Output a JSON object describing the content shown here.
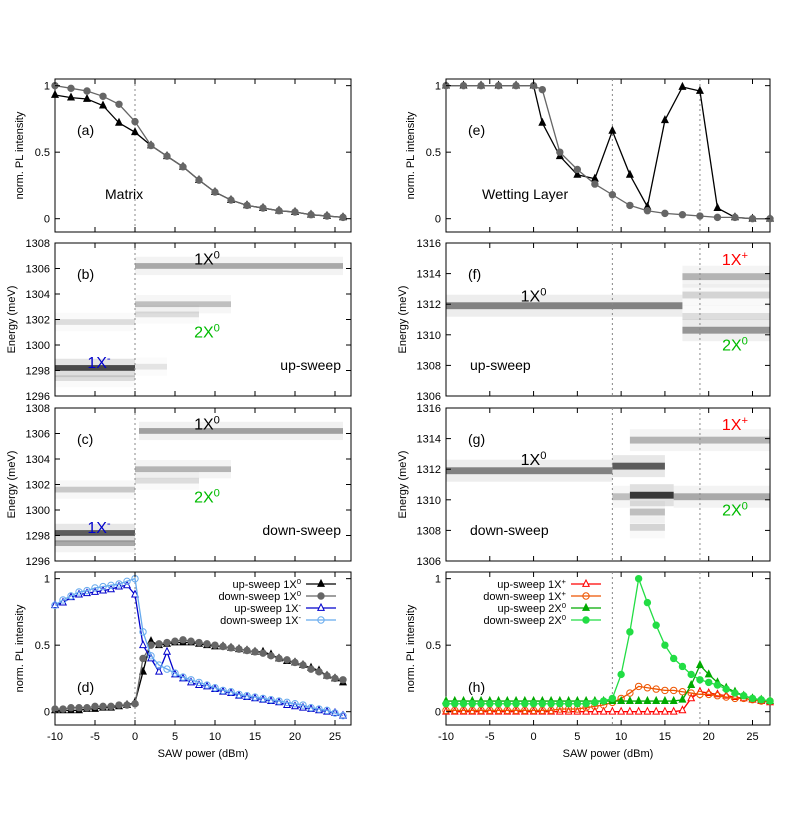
{
  "colors": {
    "black": "#000000",
    "gray": "#666666",
    "blue": "#0000cc",
    "lightblue": "#66aaee",
    "red": "#ff0000",
    "orange": "#ee5500",
    "green": "#00aa00",
    "lightgreen": "#22dd44",
    "labelgreen": "#00bb00"
  },
  "chart_data": [
    {
      "id": "a",
      "type": "line",
      "panel_label": "(a)",
      "annotation": "Matrix",
      "ylabel": "norm. PL intensity",
      "xlim": [
        -10,
        27
      ],
      "ylim": [
        -0.1,
        1.05
      ],
      "yticks": [
        "0",
        "0.5",
        "1"
      ],
      "vline_x": 0,
      "x": [
        -10,
        -8,
        -6,
        -4,
        -2,
        0,
        2,
        4,
        6,
        8,
        10,
        12,
        14,
        16,
        18,
        20,
        22,
        24,
        26
      ],
      "series": [
        {
          "color": "black",
          "marker": "triangle",
          "values": [
            0.93,
            0.91,
            0.9,
            0.85,
            0.72,
            0.65,
            0.55,
            0.47,
            0.39,
            0.29,
            0.2,
            0.14,
            0.1,
            0.08,
            0.06,
            0.05,
            0.03,
            0.02,
            0.01
          ]
        },
        {
          "color": "gray",
          "marker": "circle",
          "values": [
            1.0,
            0.98,
            0.96,
            0.92,
            0.86,
            0.73,
            0.55,
            0.47,
            0.39,
            0.29,
            0.2,
            0.14,
            0.1,
            0.08,
            0.06,
            0.05,
            0.03,
            0.02,
            0.01
          ]
        }
      ]
    },
    {
      "id": "e",
      "type": "line",
      "panel_label": "(e)",
      "annotation": "Wetting Layer",
      "ylabel": "norm. PL intensity",
      "xlim": [
        -10,
        27
      ],
      "ylim": [
        -0.1,
        1.05
      ],
      "yticks": [
        "0",
        "0.5",
        "1"
      ],
      "vlines_x": [
        9,
        19
      ],
      "series": [
        {
          "color": "black",
          "marker": "triangle",
          "x": [
            -10,
            -8,
            -6,
            -4,
            -2,
            0,
            1,
            3,
            5,
            7,
            9,
            11,
            13,
            15,
            17,
            19,
            21,
            23,
            25,
            27
          ],
          "values": [
            1.0,
            1.0,
            1.0,
            1.0,
            1.0,
            1.0,
            0.72,
            0.47,
            0.33,
            0.3,
            0.66,
            0.33,
            0.09,
            0.74,
            0.99,
            0.96,
            0.08,
            0.01,
            0.0,
            0.0
          ]
        },
        {
          "color": "gray",
          "marker": "circle",
          "x": [
            -10,
            -8,
            -6,
            -4,
            -2,
            0,
            1,
            3,
            5,
            7,
            9,
            11,
            13,
            15,
            17,
            19,
            21,
            23,
            25,
            27
          ],
          "values": [
            1.0,
            1.0,
            1.0,
            1.0,
            1.0,
            1.0,
            0.97,
            0.5,
            0.37,
            0.26,
            0.18,
            0.1,
            0.06,
            0.04,
            0.03,
            0.02,
            0.01,
            0.01,
            0.0,
            0.0
          ]
        }
      ]
    },
    {
      "id": "b",
      "type": "heatmap",
      "panel_label": "(b)",
      "ylabel": "Energy (meV)",
      "xlim": [
        -10,
        27
      ],
      "ylim": [
        1296,
        1308
      ],
      "yticks": [
        "1296",
        "1298",
        "1300",
        "1302",
        "1304",
        "1306",
        "1308"
      ],
      "vline_x": 0,
      "sweep_label": "up-sweep",
      "labels": [
        {
          "text": "1X",
          "sup": "0",
          "x": 9,
          "y": 1306.7,
          "color": "black"
        },
        {
          "text": "2X",
          "sup": "0",
          "x": 9,
          "y": 1301.0,
          "color": "labelgreen"
        },
        {
          "text": "1X",
          "sup": "-",
          "x": -4.5,
          "y": 1298.6,
          "color": "blue"
        }
      ],
      "lines": [
        {
          "x0": -10,
          "x1": 0,
          "y": 1298.2,
          "intensity": 0.9
        },
        {
          "x0": -10,
          "x1": 0,
          "y": 1297.4,
          "intensity": 0.15
        },
        {
          "x0": -10,
          "x1": 0,
          "y": 1301.8,
          "intensity": 0.15
        },
        {
          "x0": 0,
          "x1": 26,
          "y": 1306.2,
          "intensity": 0.4
        },
        {
          "x0": 0,
          "x1": 12,
          "y": 1303.2,
          "intensity": 0.3
        },
        {
          "x0": 0,
          "x1": 8,
          "y": 1302.4,
          "intensity": 0.15
        },
        {
          "x0": 0,
          "x1": 4,
          "y": 1298.3,
          "intensity": 0.12
        }
      ]
    },
    {
      "id": "c",
      "type": "heatmap",
      "panel_label": "(c)",
      "ylabel": "Energy (meV)",
      "xlim": [
        -10,
        27
      ],
      "ylim": [
        1296,
        1308
      ],
      "yticks": [
        "1296",
        "1298",
        "1300",
        "1302",
        "1304",
        "1306",
        "1308"
      ],
      "vline_x": 0,
      "sweep_label": "down-sweep",
      "labels": [
        {
          "text": "1X",
          "sup": "0",
          "x": 9,
          "y": 1306.7,
          "color": "black"
        },
        {
          "text": "2X",
          "sup": "0",
          "x": 9,
          "y": 1301.0,
          "color": "labelgreen"
        },
        {
          "text": "1X",
          "sup": "-",
          "x": -4.5,
          "y": 1298.6,
          "color": "blue"
        }
      ],
      "lines": [
        {
          "x0": -10,
          "x1": 0,
          "y": 1298.2,
          "intensity": 0.8
        },
        {
          "x0": -10,
          "x1": 0,
          "y": 1297.4,
          "intensity": 0.4
        },
        {
          "x0": -10,
          "x1": 0,
          "y": 1301.6,
          "intensity": 0.25
        },
        {
          "x0": 0.5,
          "x1": 26,
          "y": 1306.2,
          "intensity": 0.45
        },
        {
          "x0": 0,
          "x1": 12,
          "y": 1303.2,
          "intensity": 0.35
        },
        {
          "x0": 0,
          "x1": 8,
          "y": 1302.3,
          "intensity": 0.15
        }
      ]
    },
    {
      "id": "f",
      "type": "heatmap",
      "panel_label": "(f)",
      "ylabel": "Energy (meV)",
      "xlim": [
        -10,
        27
      ],
      "ylim": [
        1306,
        1316
      ],
      "yticks": [
        "1306",
        "1308",
        "1310",
        "1312",
        "1314",
        "1316"
      ],
      "vlines_x": [
        9,
        19
      ],
      "sweep_label": "up-sweep",
      "labels": [
        {
          "text": "1X",
          "sup": "0",
          "x": 0,
          "y": 1312.5,
          "color": "black"
        },
        {
          "text": "1X",
          "sup": "+",
          "x": 23,
          "y": 1314.9,
          "color": "red"
        },
        {
          "text": "2X",
          "sup": "0",
          "x": 23,
          "y": 1309.3,
          "color": "labelgreen"
        }
      ],
      "lines": [
        {
          "x0": -10,
          "x1": 17,
          "y": 1311.9,
          "intensity": 0.6
        },
        {
          "x0": 17,
          "x1": 27,
          "y": 1313.8,
          "intensity": 0.35
        },
        {
          "x0": 17,
          "x1": 27,
          "y": 1312.6,
          "intensity": 0.2
        },
        {
          "x0": 17,
          "x1": 27,
          "y": 1310.3,
          "intensity": 0.5
        },
        {
          "x0": 17,
          "x1": 27,
          "y": 1311.2,
          "intensity": 0.15
        }
      ]
    },
    {
      "id": "g",
      "type": "heatmap",
      "panel_label": "(g)",
      "ylabel": "Energy (meV)",
      "xlim": [
        -10,
        27
      ],
      "ylim": [
        1306,
        1316
      ],
      "yticks": [
        "1306",
        "1308",
        "1310",
        "1312",
        "1314",
        "1316"
      ],
      "vlines_x": [
        9,
        19
      ],
      "sweep_label": "down-sweep",
      "labels": [
        {
          "text": "1X",
          "sup": "0",
          "x": 0,
          "y": 1312.6,
          "color": "black"
        },
        {
          "text": "1X",
          "sup": "+",
          "x": 23,
          "y": 1314.9,
          "color": "red"
        },
        {
          "text": "2X",
          "sup": "0",
          "x": 23,
          "y": 1309.3,
          "color": "labelgreen"
        }
      ],
      "lines": [
        {
          "x0": -10,
          "x1": 9,
          "y": 1311.9,
          "intensity": 0.6
        },
        {
          "x0": 9,
          "x1": 15,
          "y": 1312.2,
          "intensity": 0.8
        },
        {
          "x0": 11,
          "x1": 27,
          "y": 1313.9,
          "intensity": 0.35
        },
        {
          "x0": 9,
          "x1": 11,
          "y": 1310.2,
          "intensity": 0.3
        },
        {
          "x0": 11,
          "x1": 16,
          "y": 1310.3,
          "intensity": 1.0
        },
        {
          "x0": 16,
          "x1": 27,
          "y": 1310.2,
          "intensity": 0.4
        },
        {
          "x0": 11,
          "x1": 15,
          "y": 1309.2,
          "intensity": 0.3
        },
        {
          "x0": 11,
          "x1": 15,
          "y": 1308.2,
          "intensity": 0.2
        }
      ]
    },
    {
      "id": "d",
      "type": "line",
      "panel_label": "(d)",
      "ylabel": "norm. PL intensity",
      "xlabel": "SAW power (dBm)",
      "xlim": [
        -10,
        27
      ],
      "ylim": [
        -0.1,
        1.05
      ],
      "xticks": [
        "-10",
        "-5",
        "0",
        "5",
        "10",
        "15",
        "20",
        "25"
      ],
      "yticks": [
        "0",
        "0.5",
        "1"
      ],
      "vline_x": 0,
      "legend": "top-right",
      "x": [
        -10,
        -9,
        -8,
        -7,
        -6,
        -5,
        -4,
        -3,
        -2,
        -1,
        0,
        1,
        2,
        3,
        4,
        5,
        6,
        7,
        8,
        9,
        10,
        11,
        12,
        13,
        14,
        15,
        16,
        17,
        18,
        19,
        20,
        21,
        22,
        23,
        24,
        25,
        26
      ],
      "series": [
        {
          "name": "up-sweep 1X",
          "sup": "0",
          "color": "black",
          "marker": "filled-triangle",
          "values": [
            0.01,
            0.01,
            0.01,
            0.01,
            0.02,
            0.02,
            0.03,
            0.03,
            0.04,
            0.05,
            0.07,
            0.3,
            0.53,
            0.5,
            0.51,
            0.52,
            0.52,
            0.52,
            0.51,
            0.5,
            0.49,
            0.49,
            0.48,
            0.47,
            0.46,
            0.45,
            0.45,
            0.43,
            0.4,
            0.38,
            0.37,
            0.35,
            0.33,
            0.31,
            0.27,
            0.25,
            0.22
          ]
        },
        {
          "name": "down-sweep 1X",
          "sup": "0",
          "color": "gray",
          "marker": "filled-circle",
          "values": [
            0.02,
            0.02,
            0.03,
            0.03,
            0.03,
            0.04,
            0.04,
            0.04,
            0.05,
            0.05,
            0.06,
            0.4,
            0.5,
            0.51,
            0.52,
            0.53,
            0.54,
            0.53,
            0.52,
            0.51,
            0.5,
            0.49,
            0.48,
            0.47,
            0.46,
            0.45,
            0.44,
            0.42,
            0.4,
            0.39,
            0.37,
            0.35,
            0.32,
            0.3,
            0.27,
            0.25,
            0.24
          ]
        },
        {
          "name": "up-sweep 1X",
          "sup": "-",
          "color": "blue",
          "marker": "open-triangle",
          "values": [
            0.8,
            0.82,
            0.86,
            0.88,
            0.89,
            0.9,
            0.91,
            0.92,
            0.94,
            0.95,
            0.88,
            0.5,
            0.4,
            0.3,
            0.45,
            0.28,
            0.25,
            0.22,
            0.2,
            0.19,
            0.17,
            0.15,
            0.14,
            0.12,
            0.11,
            0.1,
            0.09,
            0.08,
            0.07,
            0.05,
            0.04,
            0.03,
            0.02,
            0.01,
            0.0,
            -0.01,
            -0.03
          ]
        },
        {
          "name": "down-sweep 1X",
          "sup": "-",
          "color": "lightblue",
          "marker": "open-circle",
          "values": [
            0.8,
            0.84,
            0.87,
            0.9,
            0.91,
            0.93,
            0.94,
            0.95,
            0.96,
            0.98,
            1.0,
            0.6,
            0.42,
            0.35,
            0.32,
            0.29,
            0.26,
            0.24,
            0.22,
            0.2,
            0.18,
            0.16,
            0.15,
            0.13,
            0.12,
            0.11,
            0.1,
            0.09,
            0.08,
            0.07,
            0.06,
            0.05,
            0.03,
            0.02,
            0.01,
            -0.01,
            -0.03
          ]
        }
      ]
    },
    {
      "id": "h",
      "type": "line",
      "panel_label": "(h)",
      "ylabel": "norm. PL intensity",
      "xlabel": "SAW power (dBm)",
      "xlim": [
        -10,
        27
      ],
      "ylim": [
        -0.1,
        1.05
      ],
      "xticks": [
        "-10",
        "-5",
        "0",
        "5",
        "10",
        "15",
        "20",
        "25"
      ],
      "yticks": [
        "0",
        "0.5",
        "1"
      ],
      "vlines_x": [
        9,
        19
      ],
      "legend": "top-left",
      "x": [
        -10,
        -9,
        -8,
        -7,
        -6,
        -5,
        -4,
        -3,
        -2,
        -1,
        0,
        1,
        2,
        3,
        4,
        5,
        6,
        7,
        8,
        9,
        10,
        11,
        12,
        13,
        14,
        15,
        16,
        17,
        18,
        19,
        20,
        21,
        22,
        23,
        24,
        25,
        26,
        27
      ],
      "series": [
        {
          "name": "up-sweep 1X",
          "sup": "+",
          "color": "red",
          "marker": "open-triangle",
          "values": [
            0.0,
            0.0,
            0.0,
            0.0,
            0.0,
            0.0,
            0.0,
            0.0,
            0.0,
            0.0,
            0.0,
            0.0,
            0.0,
            0.0,
            0.0,
            0.0,
            0.0,
            0.0,
            0.0,
            0.0,
            0.0,
            0.0,
            0.0,
            0.0,
            0.0,
            0.0,
            0.0,
            0.01,
            0.1,
            0.15,
            0.14,
            0.13,
            0.12,
            0.11,
            0.1,
            0.09,
            0.08,
            0.07
          ]
        },
        {
          "name": "down-sweep 1X",
          "sup": "+",
          "color": "orange",
          "marker": "open-circle",
          "values": [
            0.01,
            0.01,
            0.01,
            0.01,
            0.01,
            0.01,
            0.01,
            0.01,
            0.01,
            0.01,
            0.01,
            0.01,
            0.01,
            0.02,
            0.02,
            0.02,
            0.03,
            0.04,
            0.05,
            0.07,
            0.1,
            0.14,
            0.19,
            0.18,
            0.17,
            0.16,
            0.16,
            0.15,
            0.14,
            0.13,
            0.13,
            0.12,
            0.11,
            0.1,
            0.1,
            0.09,
            0.08,
            0.08
          ]
        },
        {
          "name": "up-sweep 2X",
          "sup": "0",
          "color": "green",
          "marker": "filled-triangle",
          "values": [
            0.08,
            0.08,
            0.08,
            0.08,
            0.08,
            0.08,
            0.08,
            0.08,
            0.08,
            0.08,
            0.08,
            0.08,
            0.08,
            0.08,
            0.08,
            0.08,
            0.08,
            0.08,
            0.08,
            0.08,
            0.08,
            0.08,
            0.08,
            0.08,
            0.08,
            0.08,
            0.08,
            0.09,
            0.2,
            0.35,
            0.28,
            0.22,
            0.18,
            0.15,
            0.12,
            0.1,
            0.09,
            0.08
          ]
        },
        {
          "name": "down-sweep 2X",
          "sup": "0",
          "color": "lightgreen",
          "marker": "filled-circle",
          "values": [
            0.06,
            0.06,
            0.06,
            0.06,
            0.06,
            0.06,
            0.06,
            0.06,
            0.06,
            0.06,
            0.06,
            0.06,
            0.06,
            0.06,
            0.06,
            0.06,
            0.06,
            0.07,
            0.08,
            0.1,
            0.28,
            0.6,
            1.0,
            0.82,
            0.65,
            0.5,
            0.4,
            0.34,
            0.28,
            0.24,
            0.22,
            0.2,
            0.17,
            0.14,
            0.12,
            0.1,
            0.09,
            0.08
          ]
        }
      ]
    }
  ]
}
